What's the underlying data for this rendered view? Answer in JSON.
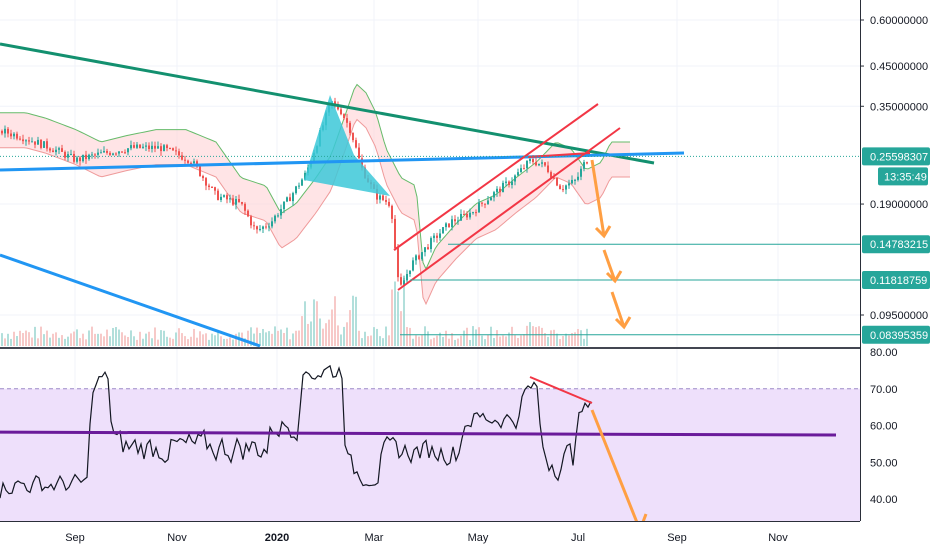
{
  "chart_data": [
    {
      "type": "candlestick",
      "price_scale": "log",
      "ylim": [
        0.08,
        0.7
      ],
      "y_ticks": [
        {
          "v": 0.6,
          "label": "0.60000000"
        },
        {
          "v": 0.45,
          "label": "0.45000000"
        },
        {
          "v": 0.35,
          "label": "0.35000000"
        },
        {
          "v": 0.19,
          "label": "0.19000000"
        },
        {
          "v": 0.095,
          "label": "0.09500000"
        }
      ],
      "price_tags": [
        {
          "v": 0.25598307,
          "label": "0.25598307",
          "color": "#26a69a"
        },
        {
          "v": 0.14783215,
          "label": "0.14783215",
          "color": "#26a69a"
        },
        {
          "v": 0.11818759,
          "label": "0.11818759",
          "color": "#26a69a"
        },
        {
          "v": 0.08395359,
          "label": "0.08395359",
          "color": "#26a69a"
        }
      ],
      "countdown": "13:35:49",
      "x_ticks": [
        "Sep",
        "Nov",
        "2020",
        "Mar",
        "May",
        "Jul",
        "Sep",
        "Nov"
      ],
      "x_ticks_bold": [
        "2020"
      ],
      "grid": true,
      "overlays": [
        "ichimoku-cloud",
        "volume",
        "trendlines",
        "ascending-channel",
        "projection-arrows"
      ]
    },
    {
      "type": "line",
      "name": "rsi",
      "ylim": [
        33,
        81
      ],
      "y_ticks": [
        {
          "v": 80,
          "label": "80.00"
        },
        {
          "v": 70,
          "label": "70.00"
        },
        {
          "v": 60,
          "label": "60.00"
        },
        {
          "v": 50,
          "label": "50.00"
        },
        {
          "v": 40,
          "label": "40.00"
        }
      ],
      "band": [
        30,
        70
      ],
      "midline": 57.5,
      "series_color": "#131722"
    }
  ],
  "colors": {
    "up": "#26a69a",
    "down": "#ef5350",
    "cloud_up": "#c8e6c9",
    "cloud_down": "#ffcdd2",
    "trend_green": "#13906f",
    "trend_blue": "#2196f3",
    "channel_red": "#f23645",
    "arrow_orange": "#ff9f43",
    "rsi_band": "#eee0fb",
    "rsi_mid": "#6a1b9a",
    "pattern_fill": "#3cc8d8"
  }
}
